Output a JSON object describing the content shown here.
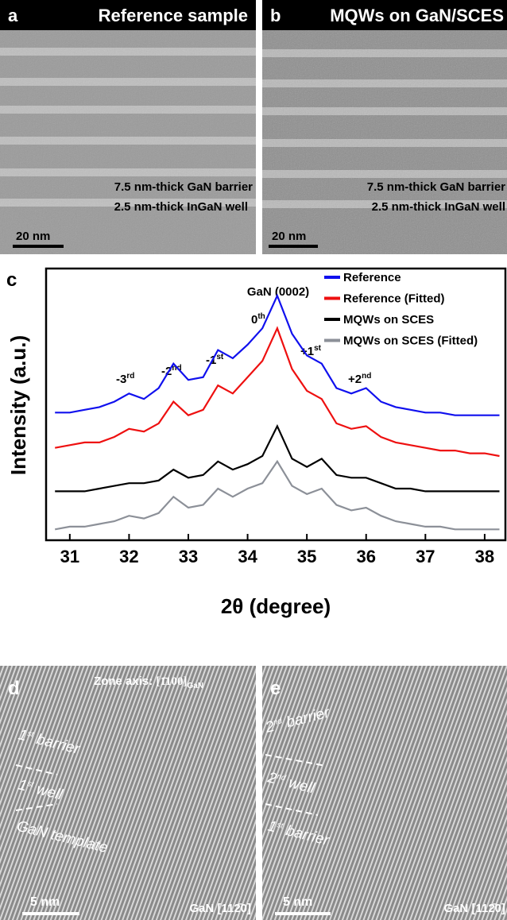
{
  "panel_a": {
    "label": "a",
    "title": "Reference sample",
    "barrier": "7.5 nm-thick GaN barrier",
    "well": "2.5 nm-thick InGaN well",
    "scale_bar": "20 nm"
  },
  "panel_b": {
    "label": "b",
    "title": "MQWs on GaN/SCES",
    "barrier": "7.5 nm-thick GaN barrier",
    "well": "2.5 nm-thick InGaN well",
    "scale_bar": "20 nm"
  },
  "chart_data": {
    "type": "line",
    "panel_label": "c",
    "ylabel": "Intensity (a.u.)",
    "xlabel": "2θ (degree)",
    "xlim": [
      30.6,
      38.35
    ],
    "xticks": [
      31,
      32,
      33,
      34,
      35,
      36,
      37,
      38
    ],
    "ylim": [
      0,
      10
    ],
    "legend": "upper right",
    "x": [
      30.75,
      31,
      31.25,
      31.5,
      31.75,
      32,
      32.25,
      32.5,
      32.75,
      33,
      33.25,
      33.5,
      33.75,
      34,
      34.25,
      34.5,
      34.75,
      35,
      35.25,
      35.5,
      35.75,
      36,
      36.25,
      36.5,
      36.75,
      37,
      37.25,
      37.5,
      37.75,
      38,
      38.25
    ],
    "series": [
      {
        "name": "Reference",
        "color": "#1010ee",
        "values": [
          4.7,
          4.7,
          4.8,
          4.9,
          5.1,
          5.4,
          5.2,
          5.6,
          6.5,
          5.9,
          6.0,
          7.0,
          6.7,
          7.2,
          7.8,
          9.0,
          7.6,
          6.8,
          6.5,
          5.6,
          5.4,
          5.6,
          5.1,
          4.9,
          4.8,
          4.7,
          4.7,
          4.6,
          4.6,
          4.6,
          4.6
        ]
      },
      {
        "name": "Reference (Fitted)",
        "color": "#ee1010",
        "values": [
          3.4,
          3.5,
          3.6,
          3.6,
          3.8,
          4.1,
          4.0,
          4.3,
          5.1,
          4.6,
          4.8,
          5.7,
          5.4,
          6.0,
          6.6,
          7.8,
          6.3,
          5.5,
          5.2,
          4.3,
          4.1,
          4.2,
          3.8,
          3.6,
          3.5,
          3.4,
          3.3,
          3.3,
          3.2,
          3.2,
          3.1
        ]
      },
      {
        "name": "MQWs on SCES",
        "color": "#000000",
        "values": [
          1.8,
          1.8,
          1.8,
          1.9,
          2.0,
          2.1,
          2.1,
          2.2,
          2.6,
          2.3,
          2.4,
          2.9,
          2.6,
          2.8,
          3.1,
          4.2,
          3.0,
          2.7,
          3.0,
          2.4,
          2.3,
          2.3,
          2.1,
          1.9,
          1.9,
          1.8,
          1.8,
          1.8,
          1.8,
          1.8,
          1.8
        ]
      },
      {
        "name": "MQWs on SCES (Fitted)",
        "color": "#8c9098",
        "values": [
          0.4,
          0.5,
          0.5,
          0.6,
          0.7,
          0.9,
          0.8,
          1.0,
          1.6,
          1.2,
          1.3,
          1.9,
          1.6,
          1.9,
          2.1,
          2.9,
          2.0,
          1.7,
          1.9,
          1.3,
          1.1,
          1.2,
          0.9,
          0.7,
          0.6,
          0.5,
          0.5,
          0.4,
          0.4,
          0.4,
          0.4
        ]
      }
    ],
    "annotations": [
      {
        "base": "GaN (0002)"
      },
      {
        "base": "0",
        "sup": "th"
      },
      {
        "base": "-3",
        "sup": "rd"
      },
      {
        "base": "-2",
        "sup": "nd"
      },
      {
        "base": "-1",
        "sup": "st"
      },
      {
        "base": "+1",
        "sup": "st"
      },
      {
        "base": "+2",
        "sup": "nd"
      }
    ]
  },
  "panel_d": {
    "label": "d",
    "zone_axis": {
      "text": "Zone axis: ",
      "index": "[1̄100]",
      "sub": "GaN"
    },
    "layers": [
      {
        "base": "1",
        "sup": "st",
        "rest": " barrier"
      },
      {
        "base": "1",
        "sup": "st",
        "rest": " well"
      },
      {
        "base": "GaN template"
      }
    ],
    "scale_bar": "5 nm",
    "direction": "GaN [112̄0]"
  },
  "panel_e": {
    "label": "e",
    "layers": [
      {
        "base": "2",
        "sup": "nd",
        "rest": " barrier"
      },
      {
        "base": "2",
        "sup": "nd",
        "rest": " well"
      },
      {
        "base": "1",
        "sup": "st",
        "rest": " barrier"
      }
    ],
    "scale_bar": "5 nm",
    "direction": "GaN [112̄0]"
  }
}
